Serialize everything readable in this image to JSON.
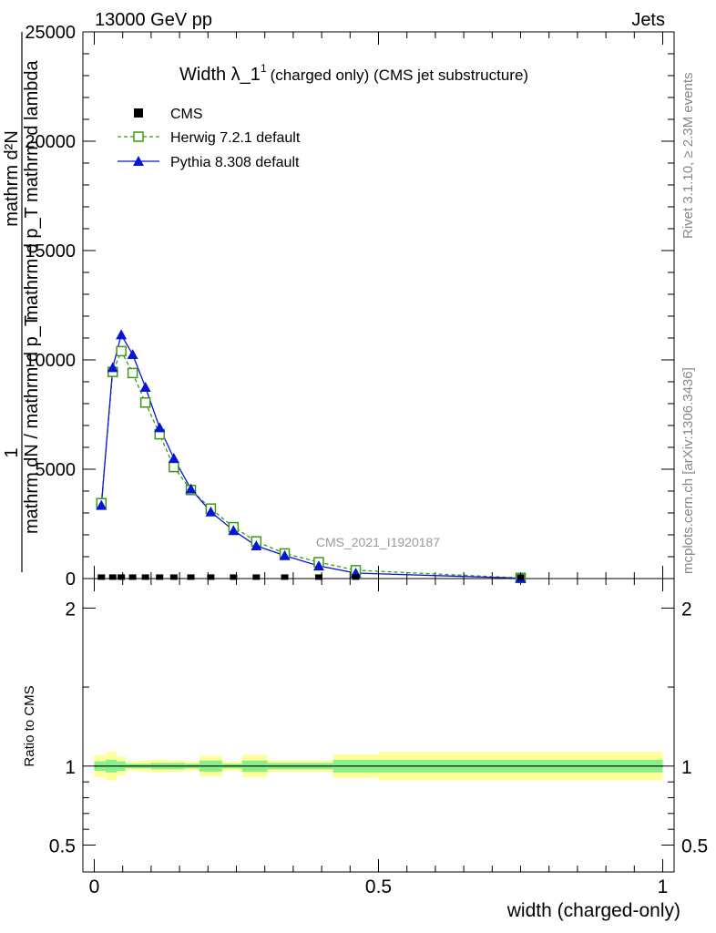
{
  "header": {
    "left": "13000 GeV pp",
    "right": "Jets"
  },
  "side_labels": {
    "rivet": "Rivet 3.1.10, ≥ 2.3M events",
    "mcplots": "mcplots.cern.ch [arXiv:1306.3436]"
  },
  "colors": {
    "cms": "#000000",
    "herwig": "#3a9a14",
    "pythia": "#0a14d8",
    "band_outer": "#ffff99",
    "band_inner": "#88f088"
  },
  "chart_data": [
    {
      "type": "line",
      "panel": "main",
      "title_main": "Width λ_1",
      "title_sup": "1",
      "title_rest": "(charged only) (CMS jet substructure)",
      "ylabel_top": "1",
      "ylabel_numerator": "mathrm d²N",
      "ylabel_numerator_2": "mathrm d p_T mathrm d lambda",
      "ylabel_denominator": "mathrm dN / mathrm d p_T",
      "watermark": "CMS_2021_I1920187",
      "xlim": [
        -0.02,
        1.02
      ],
      "ylim": [
        0,
        25000
      ],
      "yticks": [
        0,
        5000,
        10000,
        15000,
        20000,
        25000
      ],
      "ytick_labels": [
        "0",
        "5000",
        "10000",
        "15000",
        "20000",
        "25000"
      ],
      "legend_position": "top-left",
      "series": [
        {
          "name": "CMS",
          "marker": "square-filled",
          "x": [
            0.0125,
            0.0325,
            0.0475,
            0.0675,
            0.09,
            0.115,
            0.14,
            0.17,
            0.205,
            0.245,
            0.285,
            0.335,
            0.395,
            0.46,
            0.75
          ],
          "y": [
            25,
            25,
            25,
            25,
            25,
            25,
            25,
            25,
            25,
            25,
            25,
            25,
            25,
            25,
            25
          ]
        },
        {
          "name": "Herwig 7.2.1 default",
          "marker": "square-open",
          "x": [
            0.0125,
            0.0325,
            0.0475,
            0.0675,
            0.09,
            0.115,
            0.14,
            0.17,
            0.205,
            0.245,
            0.285,
            0.335,
            0.395,
            0.46,
            0.75
          ],
          "y": [
            3450,
            9450,
            10400,
            9400,
            8050,
            6600,
            5100,
            4050,
            3200,
            2350,
            1700,
            1150,
            750,
            380,
            30
          ]
        },
        {
          "name": "Pythia 8.308 default",
          "marker": "triangle-filled",
          "x": [
            0.0125,
            0.0325,
            0.0475,
            0.0675,
            0.09,
            0.115,
            0.14,
            0.17,
            0.205,
            0.245,
            0.285,
            0.335,
            0.395,
            0.46,
            0.75
          ],
          "y": [
            3350,
            9650,
            11150,
            10250,
            8750,
            6900,
            5500,
            4100,
            3050,
            2200,
            1500,
            1050,
            580,
            250,
            15
          ]
        }
      ]
    },
    {
      "type": "area",
      "panel": "ratio",
      "ylabel": "Ratio to CMS",
      "xlabel": "width (charged-only)",
      "xlim": [
        -0.02,
        1.02
      ],
      "ylim": [
        0.33,
        2.25
      ],
      "yticks": [
        0.5,
        1,
        2
      ],
      "ytick_labels": [
        "0.5",
        "1",
        "2"
      ],
      "xticks": [
        0,
        0.5,
        1
      ],
      "xtick_labels": [
        "0",
        "0.5",
        "1"
      ],
      "bins": [
        {
          "lo": 0.0,
          "hi": 0.02,
          "outer": 0.07,
          "inner": 0.03
        },
        {
          "lo": 0.02,
          "hi": 0.04,
          "outer": 0.09,
          "inner": 0.04
        },
        {
          "lo": 0.04,
          "hi": 0.055,
          "outer": 0.06,
          "inner": 0.03
        },
        {
          "lo": 0.055,
          "hi": 0.08,
          "outer": 0.03,
          "inner": 0.015
        },
        {
          "lo": 0.08,
          "hi": 0.1,
          "outer": 0.035,
          "inner": 0.015
        },
        {
          "lo": 0.1,
          "hi": 0.13,
          "outer": 0.04,
          "inner": 0.02
        },
        {
          "lo": 0.13,
          "hi": 0.16,
          "outer": 0.035,
          "inner": 0.02
        },
        {
          "lo": 0.16,
          "hi": 0.185,
          "outer": 0.03,
          "inner": 0.015
        },
        {
          "lo": 0.185,
          "hi": 0.225,
          "outer": 0.065,
          "inner": 0.035
        },
        {
          "lo": 0.225,
          "hi": 0.26,
          "outer": 0.03,
          "inner": 0.015
        },
        {
          "lo": 0.26,
          "hi": 0.305,
          "outer": 0.07,
          "inner": 0.035
        },
        {
          "lo": 0.305,
          "hi": 0.42,
          "outer": 0.035,
          "inner": 0.02
        },
        {
          "lo": 0.42,
          "hi": 0.5,
          "outer": 0.075,
          "inner": 0.04
        },
        {
          "lo": 0.5,
          "hi": 1.0,
          "outer": 0.09,
          "inner": 0.04
        }
      ]
    }
  ]
}
